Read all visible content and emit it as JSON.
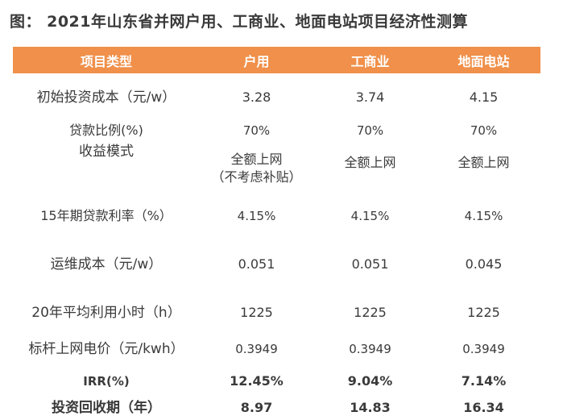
{
  "title": "图： 2021年山东省并网户用、工商业、地面电站项目经济性测算",
  "table": {
    "headers": [
      "项目类型",
      "户用",
      "工商业",
      "地面电站"
    ],
    "rows": [
      {
        "label": "初始投资成本（元/w）",
        "values": [
          "3.28",
          "3.74",
          "4.15"
        ]
      },
      {
        "label": "贷款比例(%)",
        "values": [
          "70%",
          "70%",
          "70%"
        ]
      },
      {
        "label": "收益模式",
        "values": [
          "全额上网",
          "全额上网",
          "全额上网"
        ],
        "note": "（不考虑补贴）"
      },
      {
        "label": "15年期贷款利率（%）",
        "values": [
          "4.15%",
          "4.15%",
          "4.15%"
        ]
      },
      {
        "label": "运维成本（元/w）",
        "values": [
          "0.051",
          "0.051",
          "0.045"
        ]
      },
      {
        "label": "20年平均利用小时（h）",
        "values": [
          "1225",
          "1225",
          "1225"
        ]
      },
      {
        "label": "标杆上网电价（元/kwh）",
        "values": [
          "0.3949",
          "0.3949",
          "0.3949"
        ]
      },
      {
        "label": "IRR(%)",
        "values": [
          "12.45%",
          "9.04%",
          "7.14%"
        ]
      },
      {
        "label": "投资回收期（年）",
        "values": [
          "8.97",
          "14.83",
          "16.34"
        ]
      }
    ]
  },
  "colors": {
    "header_bg": "#f0904a",
    "header_text": "#ffffff"
  }
}
